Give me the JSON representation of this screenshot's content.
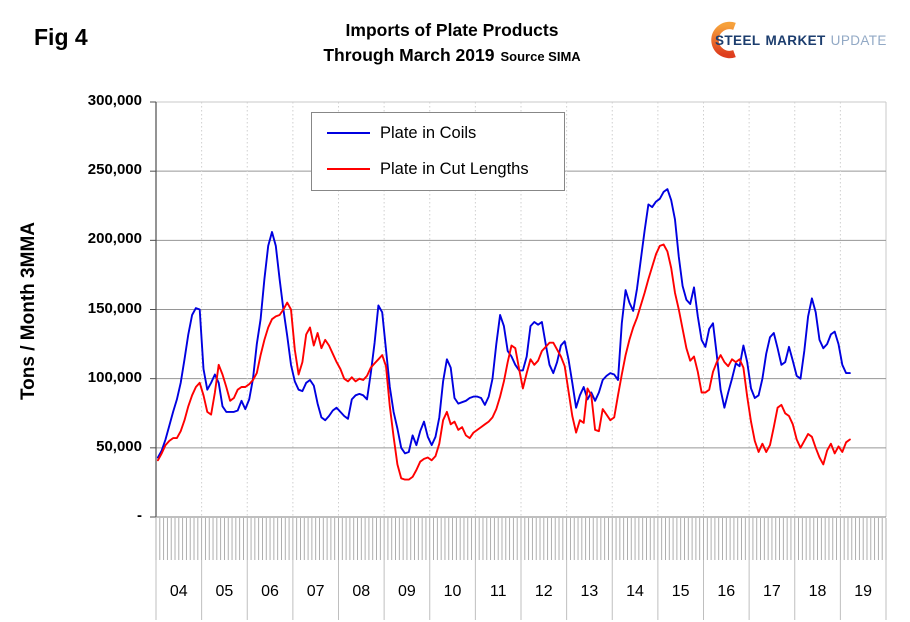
{
  "header": {
    "fig_label": "Fig 4",
    "title_line1": "Imports of Plate Products",
    "title_line2": "Through March 2019",
    "source": "Source SIMA"
  },
  "logo": {
    "word1": "STEEL",
    "word2": "MARKET",
    "word3": "UPDATE",
    "arc_color_top": "#F6A13B",
    "arc_color_bottom": "#DE3D1E",
    "text_navy": "#1C3D6E",
    "text_light": "#92A9C5"
  },
  "chart_data": {
    "type": "line",
    "title": "Imports of Plate Products Through March 2019",
    "source": "Source SIMA",
    "ylabel": "Tons / Month 3MMA",
    "frequency": "monthly",
    "x_start": "2004-01",
    "x_end": "2019-03",
    "ylim": [
      0,
      300000
    ],
    "grid": "horizontal solid gray every 50,000; dotted vertical line at each year boundary; monthly tick comb below axis",
    "legend_position": "top-center-inside",
    "y_ticks": [
      {
        "label": "300,000",
        "value": 300000
      },
      {
        "label": "250,000",
        "value": 250000
      },
      {
        "label": "200,000",
        "value": 200000
      },
      {
        "label": "150,000",
        "value": 150000
      },
      {
        "label": "100,000",
        "value": 100000
      },
      {
        "label": "50,000",
        "value": 50000
      },
      {
        "label": "-",
        "value": 0
      }
    ],
    "x_year_labels": [
      "04",
      "05",
      "06",
      "07",
      "08",
      "09",
      "10",
      "11",
      "12",
      "13",
      "14",
      "15",
      "16",
      "17",
      "18",
      "19"
    ],
    "series": [
      {
        "name": "Plate in Coils",
        "color": "#0000E0",
        "values": [
          43000,
          48000,
          56000,
          66000,
          76000,
          85000,
          97000,
          114000,
          132000,
          146000,
          151000,
          150000,
          107000,
          92000,
          97000,
          103000,
          97000,
          80000,
          76000,
          76000,
          76000,
          77000,
          84000,
          78000,
          85000,
          100000,
          125000,
          143000,
          172000,
          196000,
          206000,
          196000,
          172000,
          150000,
          131000,
          110000,
          98000,
          92000,
          91000,
          97000,
          99000,
          95000,
          82000,
          72000,
          70000,
          73000,
          77000,
          79000,
          76000,
          73000,
          71000,
          85000,
          88000,
          89000,
          88000,
          85000,
          104000,
          126000,
          153000,
          148000,
          121000,
          94000,
          76000,
          64000,
          50000,
          46000,
          47000,
          59000,
          52000,
          62000,
          69000,
          58000,
          52000,
          58000,
          72000,
          98000,
          114000,
          108000,
          86000,
          82000,
          83000,
          84000,
          86000,
          87000,
          87000,
          86000,
          81000,
          87000,
          100000,
          125000,
          146000,
          138000,
          120000,
          116000,
          110000,
          106000,
          106000,
          116000,
          138000,
          141000,
          139000,
          141000,
          125000,
          110000,
          104000,
          112000,
          124000,
          127000,
          114000,
          97000,
          79000,
          88000,
          94000,
          85000,
          90000,
          84000,
          90000,
          99000,
          102000,
          104000,
          103000,
          99000,
          140000,
          164000,
          155000,
          149000,
          165000,
          186000,
          207000,
          226000,
          224000,
          228000,
          230000,
          235000,
          237000,
          229000,
          215000,
          188000,
          167000,
          157000,
          154000,
          166000,
          145000,
          128000,
          123000,
          136000,
          140000,
          117000,
          92000,
          79000,
          90000,
          100000,
          111000,
          109000,
          124000,
          112000,
          93000,
          86000,
          88000,
          100000,
          118000,
          130000,
          133000,
          122000,
          110000,
          112000,
          123000,
          113000,
          102000,
          100000,
          120000,
          145000,
          158000,
          148000,
          128000,
          122000,
          125000,
          132000,
          134000,
          125000,
          110000,
          104000,
          104000
        ]
      },
      {
        "name": "Plate in Cut Lengths",
        "color": "#FF0000",
        "values": [
          41000,
          46000,
          52000,
          55000,
          57000,
          57000,
          62000,
          70000,
          80000,
          88000,
          94000,
          97000,
          88000,
          76000,
          74000,
          90000,
          110000,
          103000,
          94000,
          84000,
          86000,
          92000,
          94000,
          94000,
          96000,
          99000,
          104000,
          117000,
          128000,
          137000,
          143000,
          145000,
          146000,
          150000,
          155000,
          150000,
          121000,
          103000,
          112000,
          132000,
          137000,
          124000,
          133000,
          122000,
          128000,
          124000,
          118000,
          112000,
          107000,
          100000,
          98000,
          101000,
          98000,
          100000,
          99000,
          102000,
          108000,
          111000,
          114000,
          117000,
          109000,
          80000,
          58000,
          38000,
          28000,
          27000,
          27000,
          29000,
          34000,
          40000,
          42000,
          43000,
          41000,
          44000,
          53000,
          70000,
          76000,
          67000,
          69000,
          63000,
          65000,
          59000,
          57000,
          61000,
          63000,
          65000,
          67000,
          69000,
          72000,
          78000,
          87000,
          98000,
          112000,
          124000,
          122000,
          107000,
          93000,
          104000,
          114000,
          110000,
          113000,
          120000,
          123000,
          126000,
          126000,
          121000,
          116000,
          109000,
          91000,
          73000,
          61000,
          70000,
          68000,
          93000,
          88000,
          63000,
          62000,
          78000,
          74000,
          70000,
          72000,
          88000,
          103000,
          117000,
          128000,
          137000,
          144000,
          153000,
          162000,
          172000,
          181000,
          190000,
          196000,
          197000,
          192000,
          180000,
          162000,
          150000,
          136000,
          122000,
          113000,
          116000,
          105000,
          90000,
          90000,
          92000,
          105000,
          112000,
          117000,
          112000,
          109000,
          114000,
          112000,
          114000,
          108000,
          87000,
          69000,
          55000,
          47000,
          53000,
          47000,
          52000,
          65000,
          79000,
          81000,
          75000,
          73000,
          67000,
          56000,
          50000,
          55000,
          60000,
          58000,
          50000,
          43000,
          38000,
          48000,
          53000,
          46000,
          51000,
          47000,
          54000,
          56000
        ]
      }
    ]
  }
}
